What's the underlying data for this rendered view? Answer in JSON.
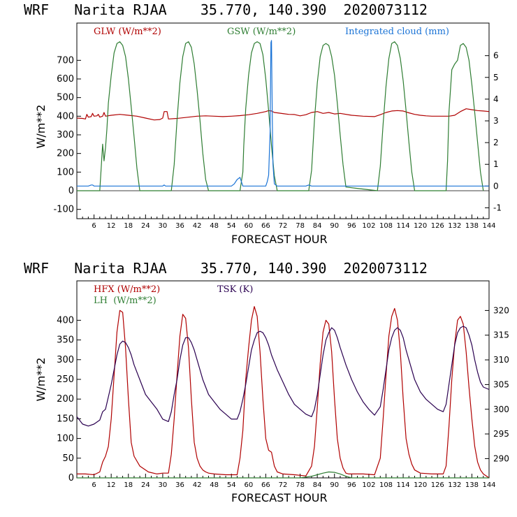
{
  "colors": {
    "red": "#b00000",
    "green": "#2e7d32",
    "blue": "#1a73d6",
    "purple": "#2a0050",
    "axis": "#000000"
  },
  "chart_data": [
    {
      "type": "line",
      "title": "WRF   Narita RJAA    35.770, 140.390  2020073112",
      "xlabel": "FORECAST HOUR",
      "ylabel": "W/m**2",
      "xlim": [
        0,
        144
      ],
      "ylim": [
        -150,
        900
      ],
      "yticks": [
        -100,
        0,
        100,
        200,
        300,
        400,
        500,
        600,
        700
      ],
      "xticks": [
        6,
        12,
        18,
        24,
        30,
        36,
        42,
        48,
        54,
        60,
        66,
        72,
        78,
        84,
        90,
        96,
        102,
        108,
        114,
        120,
        126,
        132,
        138,
        144
      ],
      "y2lim": [
        -1.5,
        7.5
      ],
      "y2ticks": [
        -1,
        0,
        1,
        2,
        3,
        4,
        5,
        6
      ],
      "series": [
        {
          "name": "GLW (W/m**2)",
          "color": "#b00000",
          "axis": "left",
          "x": [
            0,
            2,
            3,
            3.5,
            4,
            5,
            5.5,
            6,
            7,
            7.5,
            8,
            9,
            9.5,
            10,
            12,
            15,
            18,
            21,
            24,
            27,
            29,
            30,
            30.5,
            31.5,
            32,
            35,
            39,
            42,
            45,
            48,
            51,
            54,
            57,
            60,
            63,
            66,
            67,
            68,
            69,
            70,
            72,
            74,
            76,
            78,
            80,
            82,
            84,
            86,
            88,
            90,
            92,
            96,
            100,
            104,
            106,
            108,
            110,
            112,
            114,
            116,
            118,
            120,
            122,
            124,
            126,
            128,
            130,
            132,
            134,
            136,
            138,
            140,
            142,
            144
          ],
          "y": [
            390,
            388,
            385,
            410,
            395,
            398,
            415,
            400,
            402,
            410,
            395,
            400,
            420,
            400,
            405,
            410,
            405,
            400,
            390,
            380,
            382,
            390,
            425,
            425,
            385,
            388,
            395,
            400,
            402,
            400,
            398,
            400,
            403,
            408,
            415,
            425,
            430,
            428,
            420,
            418,
            414,
            410,
            409,
            402,
            408,
            420,
            425,
            415,
            420,
            412,
            415,
            405,
            400,
            398,
            408,
            420,
            428,
            430,
            428,
            418,
            410,
            405,
            402,
            400,
            400,
            400,
            400,
            405,
            425,
            440,
            435,
            430,
            428,
            425
          ]
        },
        {
          "name": "GSW (W/m**2)",
          "color": "#2e7d32",
          "axis": "left",
          "x": [
            0,
            8,
            8.5,
            9,
            9.5,
            10,
            10.5,
            11,
            12,
            13,
            14,
            15,
            16,
            17,
            18,
            19,
            20,
            21,
            22,
            33,
            34,
            35,
            36,
            37,
            38,
            39,
            40,
            41,
            42,
            43,
            44,
            45,
            46,
            57,
            58,
            58.3,
            59,
            60,
            61,
            62,
            63,
            64,
            65,
            66,
            67,
            68,
            69,
            70,
            81,
            82,
            83,
            84,
            85,
            86,
            87,
            88,
            89,
            90,
            91,
            92,
            93,
            94,
            105,
            106,
            107,
            108,
            109,
            110,
            111,
            112,
            113,
            114,
            115,
            116,
            117,
            118,
            129,
            129.5,
            130,
            131,
            132,
            133,
            134,
            135,
            136,
            137,
            138,
            139,
            140,
            141,
            142
          ],
          "y": [
            0,
            0,
            120,
            250,
            160,
            230,
            330,
            470,
            620,
            740,
            790,
            800,
            780,
            720,
            600,
            450,
            290,
            120,
            0,
            0,
            140,
            380,
            580,
            720,
            790,
            800,
            770,
            680,
            540,
            380,
            200,
            60,
            0,
            0,
            100,
            240,
            440,
            620,
            740,
            790,
            800,
            790,
            730,
            600,
            430,
            240,
            80,
            0,
            0,
            110,
            380,
            580,
            720,
            780,
            790,
            780,
            720,
            620,
            470,
            300,
            140,
            20,
            0,
            130,
            360,
            560,
            710,
            790,
            800,
            780,
            710,
            590,
            430,
            260,
            100,
            0,
            0,
            160,
            420,
            650,
            680,
            700,
            780,
            790,
            770,
            700,
            570,
            420,
            260,
            100,
            0
          ]
        },
        {
          "name": "Integrated cloud (mm)",
          "color": "#1a73d6",
          "axis": "right",
          "x": [
            0,
            4,
            5,
            5.5,
            6,
            30,
            30.5,
            31,
            54,
            55,
            56,
            57,
            58,
            66,
            66.5,
            67,
            67.5,
            67.8,
            68,
            68.3,
            68.5,
            69,
            70,
            72,
            80,
            81,
            82,
            144
          ],
          "y": [
            0,
            0,
            0.05,
            0.05,
            0,
            0,
            0.05,
            0,
            0,
            0.1,
            0.3,
            0.4,
            0,
            0,
            0.2,
            0.5,
            2.5,
            6.6,
            6.7,
            3,
            1,
            0.1,
            0,
            0,
            0,
            0.05,
            0,
            0
          ]
        }
      ]
    },
    {
      "type": "line",
      "title": "WRF   Narita RJAA    35.770, 140.390  2020073112",
      "xlabel": "FORECAST HOUR",
      "ylabel": "W/m**2",
      "xlim": [
        0,
        144
      ],
      "ylim": [
        0,
        500
      ],
      "yticks": [
        0,
        50,
        100,
        150,
        200,
        250,
        300,
        350,
        400
      ],
      "xticks": [
        6,
        12,
        18,
        24,
        30,
        36,
        42,
        48,
        54,
        60,
        66,
        72,
        78,
        84,
        90,
        96,
        102,
        108,
        114,
        120,
        126,
        132,
        138,
        144
      ],
      "y2lim": [
        286.1,
        326.0
      ],
      "y2ticks": [
        290,
        295,
        300,
        305,
        310,
        315,
        320
      ],
      "series": [
        {
          "name": "HFX (W/m**2)",
          "color": "#b00000",
          "axis": "left",
          "x": [
            0,
            3,
            6,
            8,
            9,
            10,
            11,
            12,
            13,
            14,
            15,
            16,
            17,
            18,
            19,
            20,
            22,
            25,
            28,
            30,
            32,
            33,
            34,
            35,
            36,
            37,
            38,
            39,
            40,
            41,
            42,
            43,
            44,
            45,
            46,
            48,
            52,
            56,
            57,
            58,
            59,
            60,
            61,
            62,
            63,
            64,
            65,
            66,
            67,
            68,
            69,
            70,
            72,
            76,
            80,
            82,
            83,
            84,
            85,
            86,
            87,
            88,
            89,
            90,
            91,
            92,
            93,
            94,
            95,
            96,
            100,
            104,
            106,
            107,
            108,
            109,
            110,
            111,
            112,
            113,
            114,
            115,
            116,
            117,
            118,
            120,
            124,
            128,
            129,
            130,
            131,
            132,
            133,
            134,
            135,
            136,
            137,
            138,
            139,
            140,
            141,
            142,
            144
          ],
          "y": [
            10,
            10,
            8,
            15,
            40,
            55,
            80,
            150,
            260,
            370,
            425,
            420,
            330,
            200,
            90,
            55,
            30,
            15,
            10,
            12,
            12,
            60,
            150,
            260,
            360,
            415,
            405,
            330,
            200,
            90,
            50,
            30,
            20,
            15,
            12,
            10,
            8,
            8,
            50,
            120,
            250,
            330,
            400,
            435,
            410,
            320,
            200,
            100,
            70,
            65,
            30,
            15,
            10,
            8,
            5,
            30,
            80,
            180,
            290,
            370,
            400,
            390,
            320,
            200,
            100,
            50,
            25,
            12,
            10,
            10,
            10,
            8,
            50,
            150,
            260,
            360,
            410,
            430,
            400,
            320,
            200,
            100,
            60,
            35,
            20,
            12,
            10,
            10,
            30,
            130,
            250,
            340,
            400,
            410,
            390,
            320,
            230,
            150,
            80,
            40,
            20,
            10,
            0
          ]
        },
        {
          "name": "LH  (W/m**2)",
          "color": "#2e7d32",
          "axis": "left",
          "x": [
            0,
            78,
            80,
            82,
            84,
            86,
            88,
            90,
            92,
            94,
            96,
            144
          ],
          "y": [
            0,
            0,
            2,
            4,
            8,
            12,
            15,
            14,
            10,
            4,
            0,
            0
          ]
        },
        {
          "name": "TSK (K)",
          "color": "#2a0050",
          "axis": "right",
          "x": [
            0,
            2,
            4,
            6,
            8,
            9,
            10,
            11,
            12,
            13,
            14,
            15,
            16,
            17,
            18,
            19,
            20,
            22,
            24,
            26,
            28,
            30,
            32,
            33,
            34,
            35,
            36,
            37,
            38,
            39,
            40,
            41,
            42,
            43,
            44,
            46,
            48,
            50,
            52,
            54,
            56,
            57,
            58,
            59,
            60,
            61,
            62,
            63,
            64,
            65,
            66,
            67,
            68,
            70,
            72,
            74,
            76,
            78,
            80,
            82,
            83,
            84,
            85,
            86,
            87,
            88,
            89,
            90,
            91,
            92,
            94,
            96,
            98,
            100,
            102,
            104,
            106,
            107,
            108,
            109,
            110,
            111,
            112,
            113,
            114,
            115,
            116,
            118,
            120,
            122,
            124,
            126,
            128,
            129,
            130,
            131,
            132,
            133,
            134,
            135,
            136,
            137,
            138,
            139,
            140,
            141,
            142,
            144
          ],
          "y": [
            298.5,
            297,
            296.6,
            297,
            297.8,
            299.5,
            300,
            302.5,
            305,
            308,
            311,
            313.2,
            313.8,
            313.5,
            312.5,
            311,
            309,
            306,
            303,
            301.5,
            300,
            298,
            297.5,
            299.5,
            303,
            306,
            310,
            313,
            314.5,
            314.5,
            313.5,
            312,
            310,
            308,
            306,
            303,
            301.5,
            300,
            299,
            298,
            298,
            299.5,
            302,
            305,
            308.5,
            312,
            314,
            315.5,
            315.8,
            315.5,
            314.5,
            313,
            311,
            308,
            305.5,
            303,
            301,
            300,
            299,
            298.5,
            300,
            303,
            307,
            311,
            314,
            315.5,
            316.5,
            316,
            314.5,
            312.5,
            309,
            306,
            303.5,
            301.5,
            300,
            298.8,
            300.5,
            304,
            308,
            312,
            314.5,
            316,
            316.5,
            316,
            314.5,
            312,
            310,
            306,
            303.5,
            302,
            301,
            300,
            299.5,
            301,
            305,
            309,
            313,
            315.5,
            316.5,
            316.8,
            316.5,
            315,
            313,
            310,
            307.5,
            305.5,
            304.5,
            304
          ]
        }
      ]
    }
  ]
}
